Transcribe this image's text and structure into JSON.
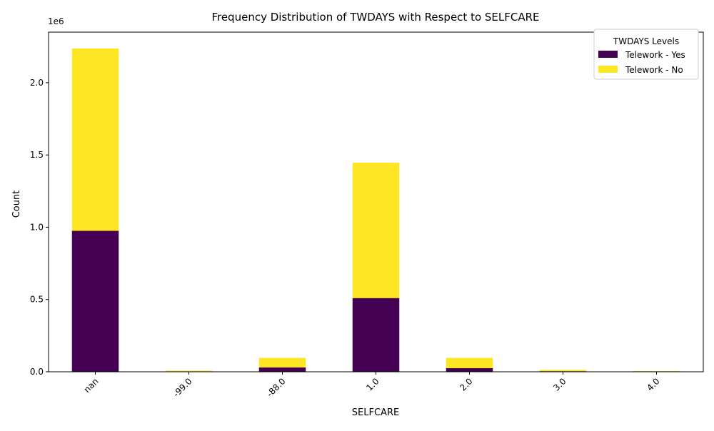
{
  "chart_data": {
    "type": "bar",
    "stacked": true,
    "title": "Frequency Distribution of TWDAYS with Respect to SELFCARE",
    "xlabel": "SELFCARE",
    "ylabel": "Count",
    "y_offset_label": "1e6",
    "y_scale_factor": 1000000,
    "ylim": [
      0,
      2350000
    ],
    "yticks": [
      0,
      500000,
      1000000,
      1500000,
      2000000
    ],
    "ytick_labels": [
      "0.0",
      "0.5",
      "1.0",
      "1.5",
      "2.0"
    ],
    "categories": [
      "nan",
      "-99.0",
      "-88.0",
      "1.0",
      "2.0",
      "3.0",
      "4.0"
    ],
    "series": [
      {
        "name": "Telework - Yes",
        "color": "#440154",
        "values": [
          975000,
          3000,
          30000,
          510000,
          25000,
          4000,
          3000
        ]
      },
      {
        "name": "Telework - No",
        "color": "#fde725",
        "values": [
          1262000,
          5000,
          66000,
          937000,
          71000,
          9000,
          2000
        ]
      }
    ],
    "legend": {
      "title": "TWDAYS Levels",
      "position": "top-right"
    },
    "grid": false
  }
}
